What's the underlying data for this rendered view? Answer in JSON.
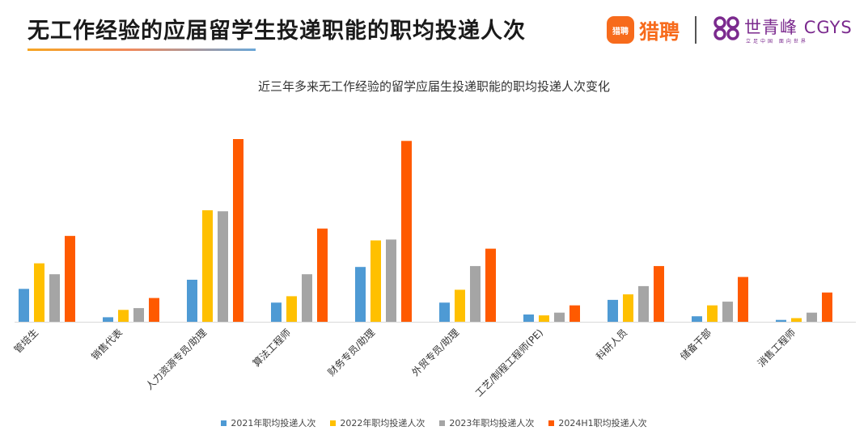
{
  "header": {
    "title": "无工作经验的应届留学生投递职能的职均投递人次",
    "brand1": {
      "badge": "猎聘",
      "name": "猎聘"
    },
    "brand2": {
      "name": "世青峰",
      "latin": "CGYS",
      "slogan": "立足中国 面向世界"
    }
  },
  "colors": {
    "accent_orange": "#f76b1c",
    "brand_purple": "#7b2a8e"
  },
  "chart_data": {
    "type": "bar",
    "title": "近三年多来无工作经验的留学应届生投递职能的职均投递人次变化",
    "xlabel": "",
    "ylabel": "",
    "ylim": [
      0,
      100
    ],
    "grid": false,
    "legend_position": "bottom",
    "categories": [
      "管培生",
      "销售代表",
      "人力资源专员/助理",
      "算法工程师",
      "财务专员/助理",
      "外贸专员/助理",
      "工艺/制程工程师(PE)",
      "科研人员",
      "储备干部",
      "消售工程师"
    ],
    "series": [
      {
        "name": "2021年职均投递人次",
        "color": "#4e9ad4",
        "values": [
          18,
          2.5,
          23,
          10.5,
          30,
          10.5,
          4,
          12,
          3,
          1
        ]
      },
      {
        "name": "2022年职均投递人次",
        "color": "#ffc000",
        "values": [
          32,
          6.5,
          61,
          14,
          44.5,
          17.5,
          3.5,
          15,
          9,
          2
        ]
      },
      {
        "name": "2023年职均投递人次",
        "color": "#a5a5a5",
        "values": [
          26,
          7.5,
          60.5,
          26,
          45,
          30.5,
          5,
          19.5,
          11,
          5
        ]
      },
      {
        "name": "2024H1职均投递人次",
        "color": "#ff5a00",
        "values": [
          47,
          13,
          100,
          51,
          99,
          40,
          9,
          30.5,
          24.5,
          16
        ]
      }
    ]
  }
}
